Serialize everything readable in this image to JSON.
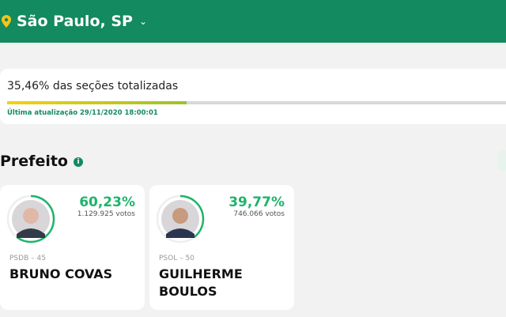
{
  "header": {
    "city": "São Paulo, SP",
    "icon": "map-pin-icon"
  },
  "totals": {
    "text": "35,46% das seções totalizadas",
    "progress_percent": 35.46,
    "updated": "Última atualização 29/11/2020 18:00:01"
  },
  "section": {
    "title": "Prefeito"
  },
  "candidates": [
    {
      "percent": "60,23%",
      "votes": "1.129.925 votos",
      "party": "PSDB – 45",
      "name": "BRUNO COVAS",
      "share": 60.23
    },
    {
      "percent": "39,77%",
      "votes": "746.066 votos",
      "party": "PSOL – 50",
      "name": "GUILHERME BOULOS",
      "share": 39.77
    }
  ],
  "colors": {
    "header": "#138a5f",
    "accent": "#1fb36b"
  }
}
